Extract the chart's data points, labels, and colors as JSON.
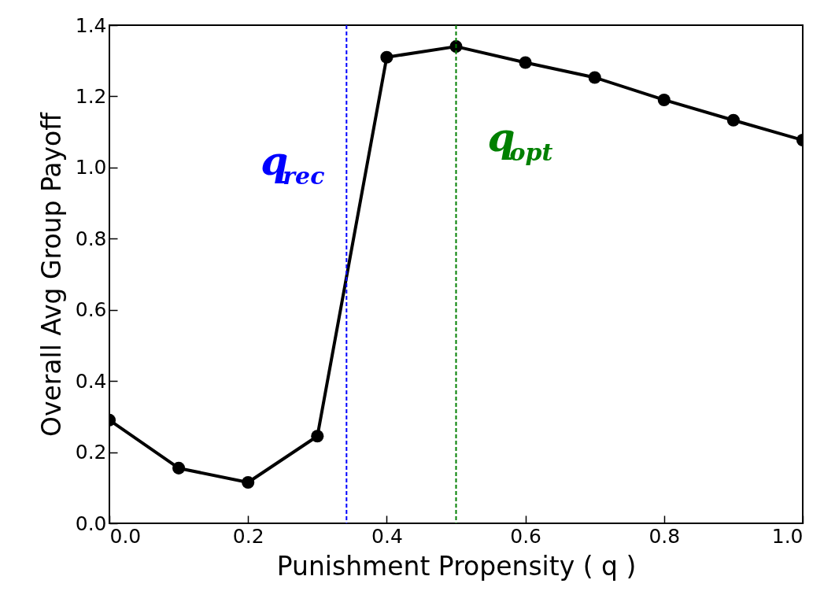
{
  "chart_data": {
    "type": "line",
    "xlabel": "Punishment Propensity ( q )",
    "ylabel": "Overall Avg Group Payoff",
    "x": [
      0,
      0.1,
      0.2,
      0.3,
      0.4,
      0.5,
      0.6,
      0.7,
      0.8,
      0.9,
      1.0
    ],
    "series": [
      {
        "color": "#000000",
        "values": [
          0.29,
          0.155,
          0.115,
          0.245,
          1.31,
          1.34,
          1.295,
          1.253,
          1.19,
          1.133,
          1.077
        ]
      }
    ],
    "xlim": [
      0,
      1
    ],
    "xticks": [
      {
        "value": 0,
        "label": "0.0"
      },
      {
        "value": 0.2,
        "label": "0.2"
      },
      0.4,
      0.6,
      0.8,
      {
        "value": 1,
        "label": "1.0"
      }
    ],
    "ylim": [
      0,
      1.4
    ],
    "yticks": [
      {
        "value": 0,
        "label": "0.0"
      },
      0.2,
      0.4,
      0.6,
      0.8,
      {
        "value": 1,
        "label": "1.0"
      },
      1.2,
      1.4
    ],
    "marker": "circle",
    "line_style": "solid",
    "grid": false,
    "ref_lines": [
      {
        "axis": "x",
        "value": 0.342,
        "label": "q$_{rec}$",
        "color": "#0000ff",
        "line_style": "dashed"
      },
      {
        "axis": "x",
        "value": 0.5,
        "label": "q$_{opt}$",
        "color": "#008000",
        "line_style": "dashed"
      }
    ]
  }
}
